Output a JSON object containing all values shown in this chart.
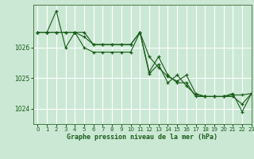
{
  "title": "Graphe pression niveau de la mer (hPa)",
  "background_color": "#cbe8d4",
  "grid_color": "#ffffff",
  "line_color": "#1a5c1a",
  "xlim": [
    -0.5,
    23
  ],
  "ylim": [
    1023.5,
    1027.4
  ],
  "yticks": [
    1024,
    1025,
    1026
  ],
  "xticks": [
    0,
    1,
    2,
    3,
    4,
    5,
    6,
    7,
    8,
    9,
    10,
    11,
    12,
    13,
    14,
    15,
    16,
    17,
    18,
    19,
    20,
    21,
    22,
    23
  ],
  "series": [
    [
      1026.5,
      1026.5,
      1027.2,
      1026.0,
      1026.5,
      1026.5,
      1026.1,
      1026.1,
      1026.1,
      1026.1,
      1026.1,
      1026.5,
      1025.2,
      1025.7,
      1025.1,
      1024.85,
      1024.85,
      1024.4,
      1024.4,
      1024.4,
      1024.4,
      1024.5,
      1023.9,
      1024.5
    ],
    [
      1026.5,
      1026.5,
      1026.5,
      1026.5,
      1026.5,
      1026.0,
      1025.85,
      1025.85,
      1025.85,
      1025.85,
      1025.85,
      1026.5,
      1025.15,
      1025.45,
      1024.85,
      1025.1,
      1024.75,
      1024.45,
      1024.4,
      1024.4,
      1024.4,
      1024.45,
      1024.45,
      1024.5
    ],
    [
      1026.5,
      1026.5,
      1026.5,
      1026.5,
      1026.5,
      1026.35,
      1026.1,
      1026.1,
      1026.1,
      1026.1,
      1026.1,
      1026.5,
      1025.7,
      1025.35,
      1025.05,
      1024.9,
      1025.1,
      1024.5,
      1024.4,
      1024.4,
      1024.4,
      1024.4,
      1024.15,
      1024.5
    ]
  ]
}
